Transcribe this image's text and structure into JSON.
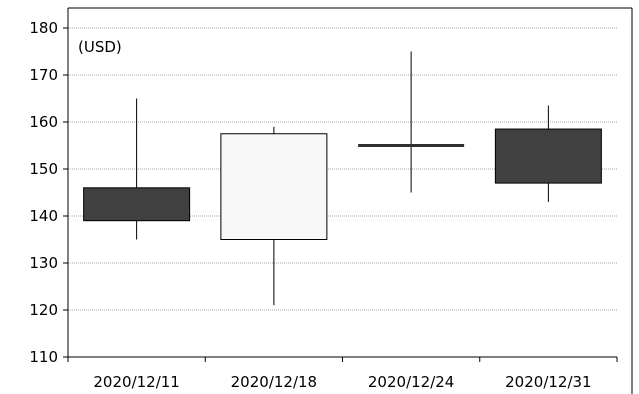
{
  "chart_data": {
    "type": "candlestick",
    "unit_label": "(USD)",
    "ylim": [
      110,
      180
    ],
    "y_ticks": [
      110,
      120,
      130,
      140,
      150,
      160,
      170,
      180
    ],
    "grid": true,
    "legend": "none",
    "categories": [
      "2020/12/11",
      "2020/12/18",
      "2020/12/24",
      "2020/12/31"
    ],
    "candles": [
      {
        "date": "2020/12/11",
        "open": 146,
        "high": 165,
        "low": 135,
        "close": 139
      },
      {
        "date": "2020/12/18",
        "open": 135,
        "high": 159,
        "low": 121,
        "close": 157.5
      },
      {
        "date": "2020/12/24",
        "open": 155,
        "high": 175,
        "low": 145,
        "close": 155
      },
      {
        "date": "2020/12/31",
        "open": 158.5,
        "high": 163.5,
        "low": 143,
        "close": 147
      }
    ],
    "colors": {
      "falling": "#404040",
      "rising": "#f8f8f8",
      "outline": "#000000",
      "grid": "#a6a6a6"
    }
  }
}
